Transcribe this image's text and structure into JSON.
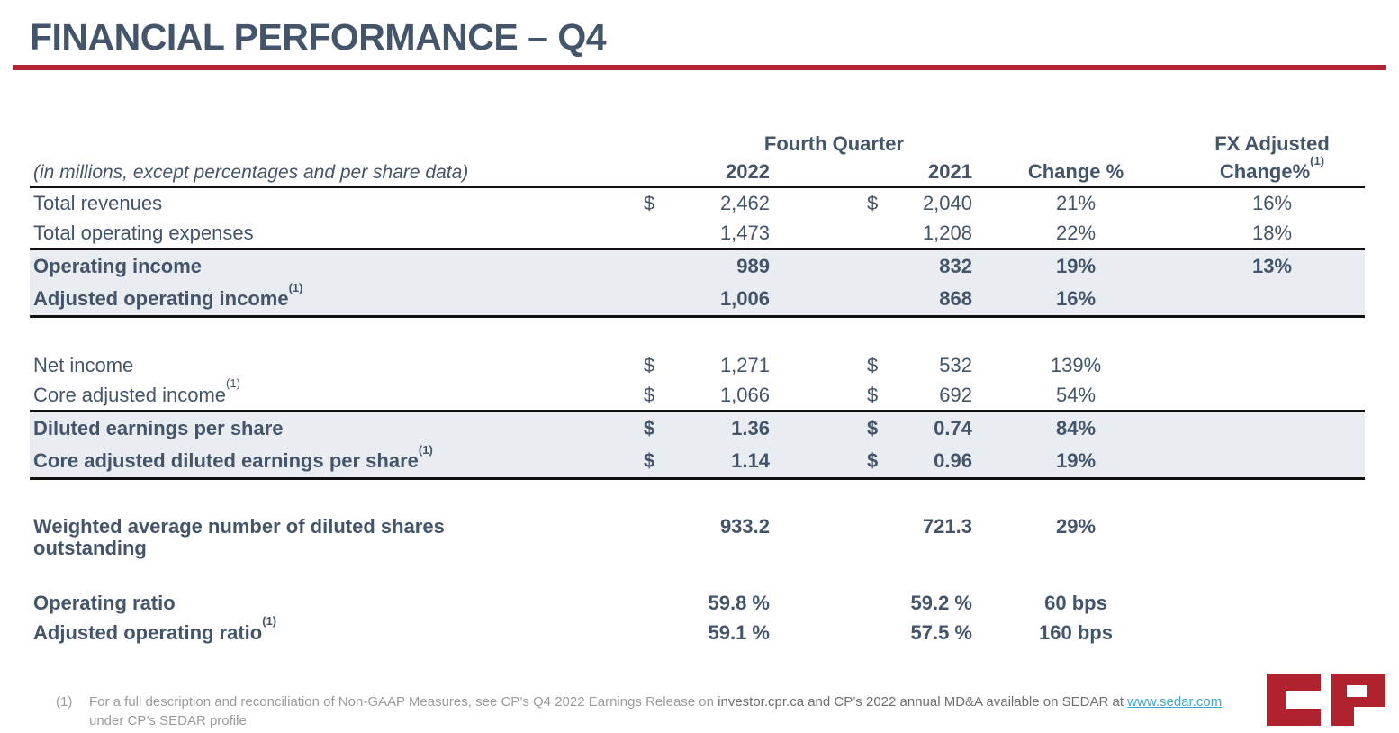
{
  "title": "FINANCIAL PERFORMANCE – Q4",
  "colors": {
    "text": "#44546A",
    "accent_red": "#B12433",
    "row_shade": "#E9EDF1",
    "border_dark": "#111111",
    "footnote_gray": "#9B9B9B",
    "footnote_dark": "#6E6E6E",
    "link_teal": "#3FA9C9",
    "logo_red": "#B0232E"
  },
  "table": {
    "units_note": "(in millions, except percentages and per share data)",
    "group_header": "Fourth Quarter",
    "columns": {
      "y2022": "2022",
      "y2021": "2021",
      "change": "Change %",
      "fx_line1": "FX Adjusted",
      "fx_line2": "Change%",
      "fx_sup": "(1)"
    },
    "rows": [
      {
        "label": "Total revenues",
        "d1": "$",
        "v2022": "2,462",
        "d2": "$",
        "v2021": "2,040",
        "change": "21%",
        "fx": "16%"
      },
      {
        "label": "Total operating expenses",
        "v2022": "1,473",
        "v2021": "1,208",
        "change": "22%",
        "fx": "18%"
      },
      {
        "label": "Operating income",
        "bold": true,
        "shaded": true,
        "bt": true,
        "v2022": "989",
        "v2021": "832",
        "change": "19%",
        "fx": "13%"
      },
      {
        "label": "Adjusted operating income",
        "sup": "(1)",
        "bold": true,
        "shaded": true,
        "bb": true,
        "v2022": "1,006",
        "v2021": "868",
        "change": "16%"
      },
      {
        "label": "Net income",
        "spacer": 36,
        "d1": "$",
        "v2022": "1,271",
        "d2": "$",
        "v2021": "532",
        "change": "139%"
      },
      {
        "label": "Core adjusted income",
        "sup": "(1)",
        "d1": "$",
        "v2022": "1,066",
        "d2": "$",
        "v2021": "692",
        "change": "54%"
      },
      {
        "label": "Diluted earnings per share",
        "bold": true,
        "shaded": true,
        "bt": true,
        "d1": "$",
        "v2022": "1.36",
        "d2": "$",
        "v2021": "0.74",
        "change": "84%"
      },
      {
        "label": "Core adjusted diluted earnings per share",
        "sup": "(1)",
        "bold": true,
        "shaded": true,
        "bb": true,
        "d1": "$",
        "v2022": "1.14",
        "d2": "$",
        "v2021": "0.96",
        "change": "19%"
      },
      {
        "label": "Weighted average number of diluted shares outstanding",
        "spacer": 38,
        "tall": true,
        "bold": true,
        "v2022": "933.2",
        "v2021": "721.3",
        "change": "29%"
      },
      {
        "label": "Operating ratio",
        "spacer": 24,
        "bold": true,
        "v2022": "59.8 %",
        "v2021": "59.2 %",
        "change": "60 bps"
      },
      {
        "label": "Adjusted operating ratio",
        "sup": "(1)",
        "bold": true,
        "v2022": "59.1 %",
        "v2021": "57.5 %",
        "change": "160 bps"
      }
    ]
  },
  "footnote": {
    "marker": "(1)",
    "segments": [
      {
        "text": "For a full description and reconciliation of Non-GAAP Measures, see CP’s Q4 2022 Earnings Release on ",
        "tone": "gray"
      },
      {
        "text": "investor.cpr.ca",
        "tone": "dark"
      },
      {
        "text": " and CP’s 2022 annual MD&A available on SEDAR at ",
        "tone": "dark"
      },
      {
        "text": "www.sedar.com",
        "tone": "link"
      },
      {
        "text": " under CP’s SEDAR profile",
        "tone": "gray"
      }
    ]
  },
  "logo_text": "CP"
}
